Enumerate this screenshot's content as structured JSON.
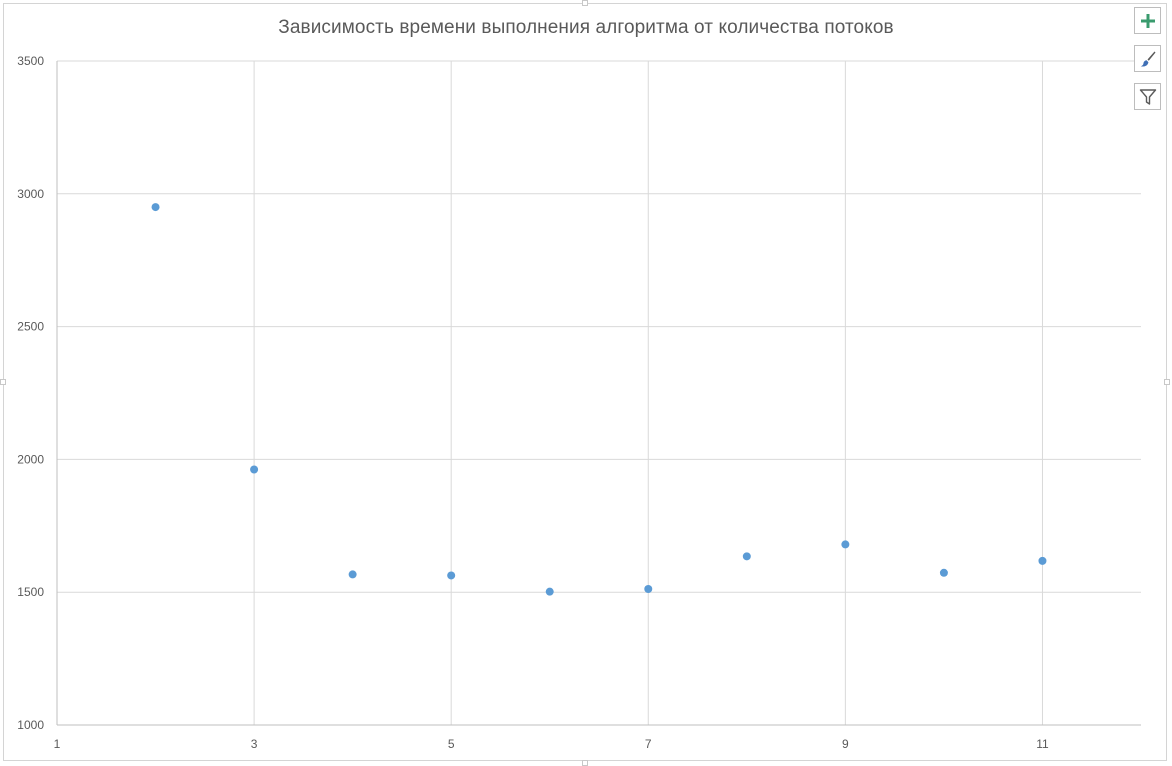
{
  "chart_data": {
    "type": "scatter",
    "title": "Зависимость времени выполнения алгоритма от количества потоков",
    "xlabel": "",
    "ylabel": "",
    "xlim": [
      1,
      12
    ],
    "ylim": [
      1000,
      3500
    ],
    "x_ticks": [
      1,
      3,
      5,
      7,
      9,
      11
    ],
    "y_ticks": [
      1000,
      1500,
      2000,
      2500,
      3000,
      3500
    ],
    "grid": true,
    "legend": "none",
    "series": [
      {
        "color": "#5b9bd5",
        "x": [
          2,
          3,
          4,
          5,
          6,
          7,
          8,
          9,
          10,
          11
        ],
        "y": [
          2950,
          1962,
          1567,
          1563,
          1502,
          1512,
          1635,
          1680,
          1573,
          1618
        ]
      }
    ]
  },
  "toolbar": {
    "add_icon": "plus-icon",
    "style_icon": "brush-icon",
    "filter_icon": "filter-icon",
    "add_color": "#3a9b6e",
    "style_color": "#3f6fb5"
  },
  "colors": {
    "grid": "#d9d9d9",
    "axis_text": "#595959",
    "title": "#595959",
    "marker": "#5b9bd5"
  }
}
